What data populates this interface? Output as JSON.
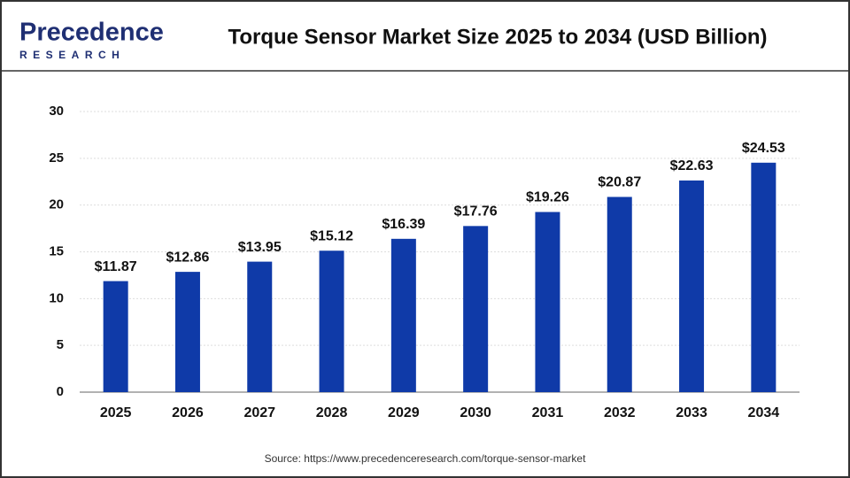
{
  "logo": {
    "name": "Precedence",
    "tagline": "RESEARCH"
  },
  "chart_data": {
    "type": "bar",
    "title": "Torque Sensor Market Size 2025 to 2034 (USD Billion)",
    "categories": [
      "2025",
      "2026",
      "2027",
      "2028",
      "2029",
      "2030",
      "2031",
      "2032",
      "2033",
      "2034"
    ],
    "values": [
      11.87,
      12.86,
      13.95,
      15.12,
      16.39,
      17.76,
      19.26,
      20.87,
      22.63,
      24.53
    ],
    "value_labels": [
      "$11.87",
      "$12.86",
      "$13.95",
      "$15.12",
      "$16.39",
      "$17.76",
      "$19.26",
      "$20.87",
      "$22.63",
      "$24.53"
    ],
    "color": "#0f3aa8",
    "ylim": [
      0,
      30
    ],
    "yticks": [
      0,
      5,
      10,
      15,
      20,
      25,
      30
    ],
    "grid": true,
    "source": "Source: https://www.precedenceresearch.com/torque-sensor-market"
  }
}
